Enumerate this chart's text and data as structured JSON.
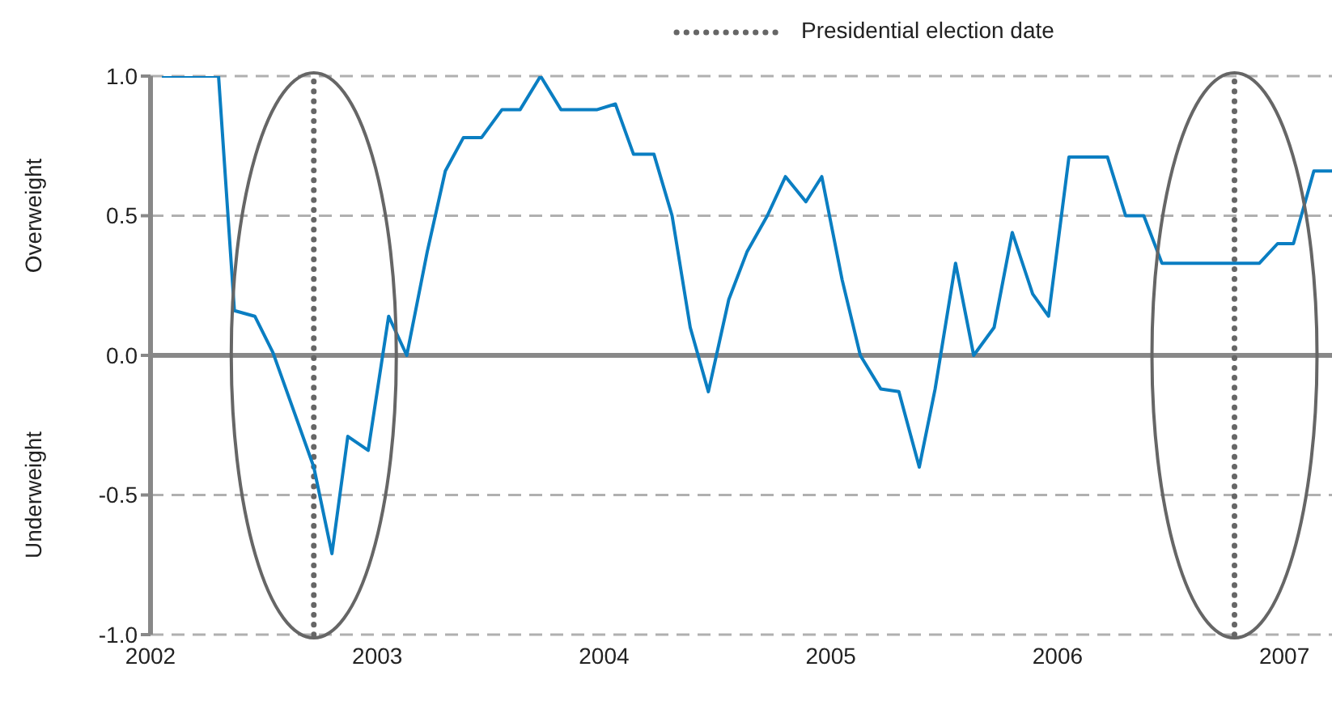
{
  "chart_data": {
    "type": "line",
    "x": [
      2002.05,
      2002.3,
      2002.37,
      2002.46,
      2002.54,
      2002.72,
      2002.8,
      2002.87,
      2002.96,
      2003.05,
      2003.13,
      2003.22,
      2003.3,
      2003.38,
      2003.46,
      2003.55,
      2003.63,
      2003.72,
      2003.81,
      2003.97,
      2004.05,
      2004.13,
      2004.22,
      2004.3,
      2004.38,
      2004.46,
      2004.55,
      2004.63,
      2004.72,
      2004.8,
      2004.89,
      2004.96,
      2005.05,
      2005.13,
      2005.22,
      2005.3,
      2005.39,
      2005.46,
      2005.55,
      2005.63,
      2005.72,
      2005.8,
      2005.89,
      2005.96,
      2006.05,
      2006.13,
      2006.22,
      2006.3,
      2006.38,
      2006.46,
      2006.89,
      2006.97,
      2007.04,
      2007.13,
      2007.21
    ],
    "series": [
      {
        "color": "#0a7ec2",
        "values": [
          1.0,
          1.0,
          0.16,
          0.14,
          0.01,
          -0.4,
          -0.71,
          -0.29,
          -0.34,
          0.14,
          0.0,
          0.37,
          0.66,
          0.78,
          0.78,
          0.88,
          0.88,
          1.0,
          0.88,
          0.88,
          0.9,
          0.72,
          0.72,
          0.5,
          0.1,
          -0.13,
          0.2,
          0.37,
          0.5,
          0.64,
          0.55,
          0.64,
          0.27,
          0.0,
          -0.12,
          -0.13,
          -0.4,
          -0.12,
          0.33,
          0.0,
          0.1,
          0.44,
          0.22,
          0.14,
          0.71,
          0.71,
          0.71,
          0.5,
          0.5,
          0.33,
          0.33,
          0.4,
          0.4,
          0.66,
          0.66
        ]
      }
    ],
    "xlim": [
      2002,
      2007.21
    ],
    "xticks": [
      2002,
      2003,
      2004,
      2005,
      2006,
      2007
    ],
    "ylim": [
      -1.0,
      1.0
    ],
    "yticks": [
      {
        "value": -1,
        "label": "-1.0"
      },
      {
        "value": -0.5,
        "label": "-0.5"
      },
      {
        "value": 0,
        "label": "0.0"
      },
      {
        "value": 0.5,
        "label": "0.5"
      },
      {
        "value": 1,
        "label": "1.0"
      }
    ],
    "grid": "y",
    "marker": "none",
    "line_style": "solid",
    "legend": "top",
    "ref_lines": [
      {
        "axis": "x",
        "value": 2002.72,
        "label": "Presidential election date",
        "color": "#666666",
        "line_style": "dotted"
      },
      {
        "axis": "x",
        "value": 2006.78,
        "color": "#666666",
        "line_style": "dotted"
      }
    ],
    "annotations": [
      "Overweight",
      "Underweight"
    ]
  }
}
